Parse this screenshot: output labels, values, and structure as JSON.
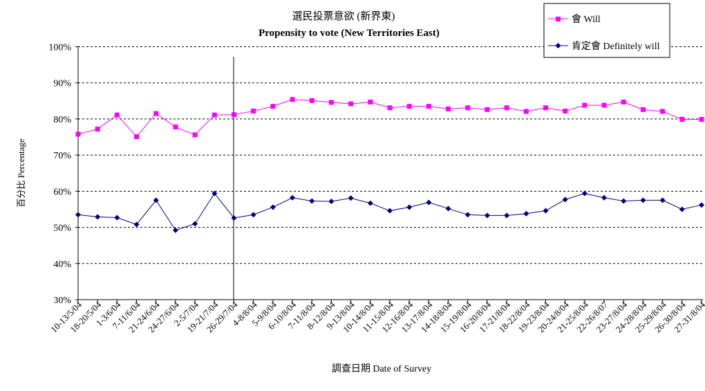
{
  "chart_data": {
    "type": "line",
    "title": "選民投票意欲 (新界東)",
    "subtitle": "Propensity to vote (New Territories East)",
    "xlabel": "調查日期 Date of Survey",
    "ylabel": "百分比 Percentage",
    "ylim": [
      30,
      100
    ],
    "yticks": [
      "30%",
      "40%",
      "50%",
      "60%",
      "70%",
      "80%",
      "90%",
      "100%"
    ],
    "grid": true,
    "legend_position": "top-right",
    "categories": [
      "10-13/5/04",
      "18-20/5/04",
      "1-3/6/04",
      "7-11/6/04",
      "21-24/6/04",
      "24-27/6/04",
      "2-5/7/04",
      "19-21/7/04",
      "26-29/7/04",
      "4-8/8/04",
      "5-9/8/04",
      "6-10/8/04",
      "7-11/8/04",
      "8-12/8/04",
      "9-13/8/04",
      "10-14/8/04",
      "11-15/8/04",
      "12-16/8/04",
      "13-17/8/04",
      "14-18/8/04",
      "15-19/8/04",
      "16-20/8/04",
      "17-21/8/04",
      "18-22/8/04",
      "19-23/8/04",
      "20-24/8/04",
      "21-25/8/04",
      "22-26/8/07",
      "23-27/8/04",
      "24-28/8/04",
      "25-29/8/04",
      "26-30/8/04",
      "27-31/8/04"
    ],
    "series": [
      {
        "name": "會 Will",
        "color": "#ff00ff",
        "marker": "square",
        "values": [
          75.8,
          77.2,
          81.1,
          75.1,
          81.5,
          77.8,
          75.6,
          81.1,
          81.2,
          82.2,
          83.5,
          85.4,
          85.1,
          84.6,
          84.2,
          84.7,
          83.1,
          83.5,
          83.5,
          82.8,
          83.1,
          82.6,
          83.1,
          82.1,
          83.1,
          82.2,
          83.8,
          83.8,
          84.7,
          82.6,
          82.1,
          79.9,
          79.9
        ]
      },
      {
        "name": "肯定會 Definitely will",
        "color": "#000080",
        "marker": "diamond",
        "values": [
          53.5,
          52.9,
          52.7,
          50.8,
          57.5,
          49.2,
          51.0,
          59.4,
          52.6,
          53.5,
          55.6,
          58.2,
          57.3,
          57.2,
          58.1,
          56.7,
          54.6,
          55.6,
          56.9,
          55.2,
          53.5,
          53.3,
          53.3,
          53.8,
          54.6,
          57.7,
          59.4,
          58.2,
          57.3,
          57.5,
          57.5,
          55.0,
          56.2
        ]
      }
    ],
    "reference_line_after_category": "26-29/7/04"
  }
}
